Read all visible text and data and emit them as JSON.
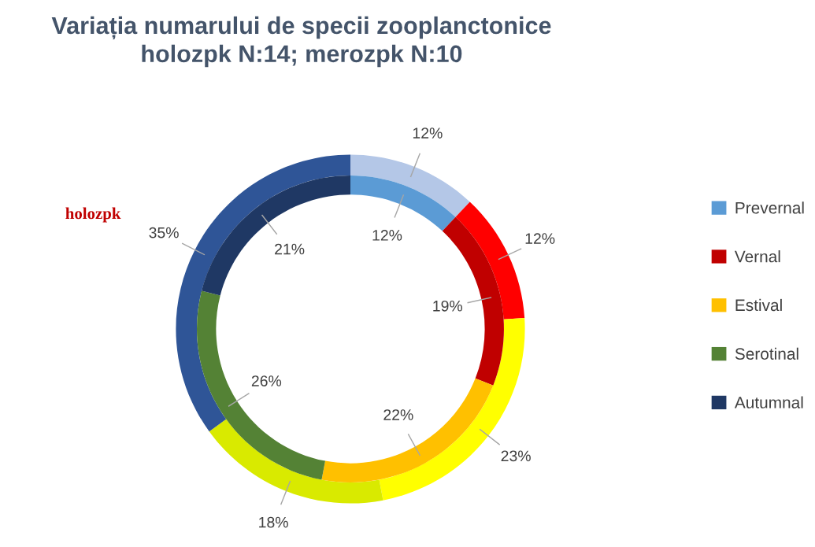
{
  "chart_data": {
    "type": "donut",
    "title": "Variația numarului de specii zooplanctonice\nholozpk N:14; merozpk N:10",
    "categories": [
      "Prevernal",
      "Vernal",
      "Estival",
      "Serotinal",
      "Autumnal"
    ],
    "series": [
      {
        "values": [
          12,
          12,
          23,
          18,
          35
        ],
        "colors": [
          "#b4c7e7",
          "#ff0000",
          "#ffff00",
          "#d9ea00",
          "#2f5597"
        ],
        "value_labels": [
          "12%",
          "12%",
          "23%",
          "18%",
          "35%"
        ]
      },
      {
        "values": [
          12,
          19,
          22,
          26,
          21
        ],
        "colors": [
          "#5b9bd5",
          "#c00000",
          "#ffc000",
          "#548235",
          "#1f3864"
        ],
        "value_labels": [
          "12%",
          "19%",
          "22%",
          "26%",
          "21%"
        ]
      }
    ],
    "annotations": [
      "holozpk"
    ],
    "legend": "right"
  }
}
